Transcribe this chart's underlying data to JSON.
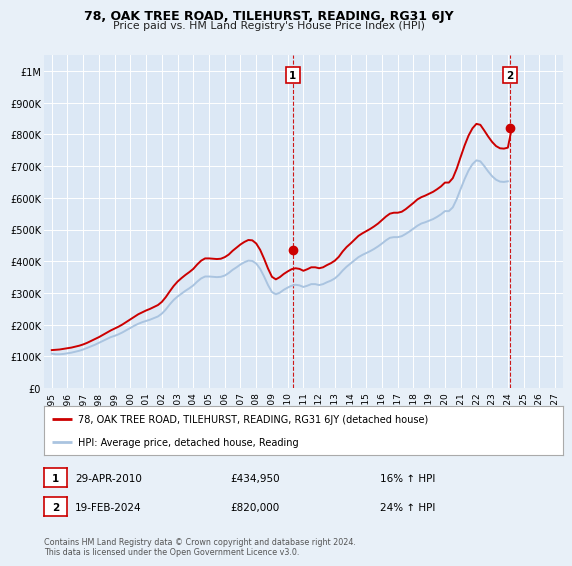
{
  "title": "78, OAK TREE ROAD, TILEHURST, READING, RG31 6JY",
  "subtitle": "Price paid vs. HM Land Registry's House Price Index (HPI)",
  "background_color": "#e8f0f8",
  "plot_bg_color": "#dce8f5",
  "grid_color": "#ffffff",
  "ylim": [
    0,
    1050000
  ],
  "yticks": [
    0,
    100000,
    200000,
    300000,
    400000,
    500000,
    600000,
    700000,
    800000,
    900000,
    1000000
  ],
  "ytick_labels": [
    "£0",
    "£100K",
    "£200K",
    "£300K",
    "£400K",
    "£500K",
    "£600K",
    "£700K",
    "£800K",
    "£900K",
    "£1M"
  ],
  "hpi_line_color": "#aac4e0",
  "price_line_color": "#cc0000",
  "sale1_x": 2010.33,
  "sale1_y": 434950,
  "sale1_label": "1",
  "sale1_date": "29-APR-2010",
  "sale1_price": "£434,950",
  "sale1_hpi": "16% ↑ HPI",
  "sale2_x": 2024.13,
  "sale2_y": 820000,
  "sale2_label": "2",
  "sale2_date": "19-FEB-2024",
  "sale2_price": "£820,000",
  "sale2_hpi": "24% ↑ HPI",
  "vline1_x": 2010.33,
  "vline2_x": 2024.13,
  "legend_label1": "78, OAK TREE ROAD, TILEHURST, READING, RG31 6JY (detached house)",
  "legend_label2": "HPI: Average price, detached house, Reading",
  "footer": "Contains HM Land Registry data © Crown copyright and database right 2024.\nThis data is licensed under the Open Government Licence v3.0.",
  "hpi_data_x": [
    1995.0,
    1995.25,
    1995.5,
    1995.75,
    1996.0,
    1996.25,
    1996.5,
    1996.75,
    1997.0,
    1997.25,
    1997.5,
    1997.75,
    1998.0,
    1998.25,
    1998.5,
    1998.75,
    1999.0,
    1999.25,
    1999.5,
    1999.75,
    2000.0,
    2000.25,
    2000.5,
    2000.75,
    2001.0,
    2001.25,
    2001.5,
    2001.75,
    2002.0,
    2002.25,
    2002.5,
    2002.75,
    2003.0,
    2003.25,
    2003.5,
    2003.75,
    2004.0,
    2004.25,
    2004.5,
    2004.75,
    2005.0,
    2005.25,
    2005.5,
    2005.75,
    2006.0,
    2006.25,
    2006.5,
    2006.75,
    2007.0,
    2007.25,
    2007.5,
    2007.75,
    2008.0,
    2008.25,
    2008.5,
    2008.75,
    2009.0,
    2009.25,
    2009.5,
    2009.75,
    2010.0,
    2010.25,
    2010.5,
    2010.75,
    2011.0,
    2011.25,
    2011.5,
    2011.75,
    2012.0,
    2012.25,
    2012.5,
    2012.75,
    2013.0,
    2013.25,
    2013.5,
    2013.75,
    2014.0,
    2014.25,
    2014.5,
    2014.75,
    2015.0,
    2015.25,
    2015.5,
    2015.75,
    2016.0,
    2016.25,
    2016.5,
    2016.75,
    2017.0,
    2017.25,
    2017.5,
    2017.75,
    2018.0,
    2018.25,
    2018.5,
    2018.75,
    2019.0,
    2019.25,
    2019.5,
    2019.75,
    2020.0,
    2020.25,
    2020.5,
    2020.75,
    2021.0,
    2021.25,
    2021.5,
    2021.75,
    2022.0,
    2022.25,
    2022.5,
    2022.75,
    2023.0,
    2023.25,
    2023.5,
    2023.75,
    2024.0
  ],
  "hpi_data_y": [
    109000,
    107000,
    107000,
    108000,
    110000,
    112000,
    115000,
    118000,
    122000,
    127000,
    132000,
    137000,
    143000,
    149000,
    155000,
    161000,
    165000,
    170000,
    176000,
    183000,
    190000,
    197000,
    203000,
    208000,
    212000,
    216000,
    221000,
    226000,
    235000,
    248000,
    264000,
    278000,
    289000,
    298000,
    307000,
    315000,
    324000,
    336000,
    346000,
    352000,
    352000,
    351000,
    350000,
    351000,
    355000,
    363000,
    373000,
    381000,
    390000,
    397000,
    402000,
    401000,
    393000,
    376000,
    352000,
    325000,
    303000,
    296000,
    301000,
    310000,
    317000,
    323000,
    326000,
    324000,
    319000,
    323000,
    328000,
    328000,
    325000,
    328000,
    334000,
    339000,
    346000,
    357000,
    371000,
    383000,
    393000,
    403000,
    413000,
    420000,
    426000,
    432000,
    439000,
    447000,
    456000,
    466000,
    474000,
    476000,
    476000,
    479000,
    486000,
    494000,
    503000,
    512000,
    519000,
    523000,
    528000,
    533000,
    540000,
    548000,
    558000,
    558000,
    570000,
    596000,
    628000,
    659000,
    686000,
    706000,
    718000,
    715000,
    700000,
    683000,
    668000,
    657000,
    651000,
    650000,
    652000
  ],
  "price_data_x": [
    1995.0,
    1995.25,
    1995.5,
    1995.75,
    1996.0,
    1996.25,
    1996.5,
    1996.75,
    1997.0,
    1997.25,
    1997.5,
    1997.75,
    1998.0,
    1998.25,
    1998.5,
    1998.75,
    1999.0,
    1999.25,
    1999.5,
    1999.75,
    2000.0,
    2000.25,
    2000.5,
    2000.75,
    2001.0,
    2001.25,
    2001.5,
    2001.75,
    2002.0,
    2002.25,
    2002.5,
    2002.75,
    2003.0,
    2003.25,
    2003.5,
    2003.75,
    2004.0,
    2004.25,
    2004.5,
    2004.75,
    2005.0,
    2005.25,
    2005.5,
    2005.75,
    2006.0,
    2006.25,
    2006.5,
    2006.75,
    2007.0,
    2007.25,
    2007.5,
    2007.75,
    2008.0,
    2008.25,
    2008.5,
    2008.75,
    2009.0,
    2009.25,
    2009.5,
    2009.75,
    2010.0,
    2010.25,
    2010.5,
    2010.75,
    2011.0,
    2011.25,
    2011.5,
    2011.75,
    2012.0,
    2012.25,
    2012.5,
    2012.75,
    2013.0,
    2013.25,
    2013.5,
    2013.75,
    2014.0,
    2014.25,
    2014.5,
    2014.75,
    2015.0,
    2015.25,
    2015.5,
    2015.75,
    2016.0,
    2016.25,
    2016.5,
    2016.75,
    2017.0,
    2017.25,
    2017.5,
    2017.75,
    2018.0,
    2018.25,
    2018.5,
    2018.75,
    2019.0,
    2019.25,
    2019.5,
    2019.75,
    2020.0,
    2020.25,
    2020.5,
    2020.75,
    2021.0,
    2021.25,
    2021.5,
    2021.75,
    2022.0,
    2022.25,
    2022.5,
    2022.75,
    2023.0,
    2023.25,
    2023.5,
    2023.75,
    2024.0,
    2024.25
  ],
  "price_data_y": [
    120000,
    121000,
    122000,
    124000,
    126000,
    128000,
    131000,
    134000,
    138000,
    143000,
    149000,
    155000,
    161000,
    168000,
    175000,
    182000,
    188000,
    194000,
    201000,
    209000,
    217000,
    225000,
    233000,
    239000,
    245000,
    250000,
    256000,
    262000,
    272000,
    287000,
    305000,
    322000,
    336000,
    347000,
    357000,
    366000,
    376000,
    390000,
    402000,
    409000,
    409000,
    408000,
    407000,
    408000,
    413000,
    421000,
    433000,
    443000,
    453000,
    461000,
    467000,
    466000,
    456000,
    436000,
    408000,
    377000,
    351000,
    343000,
    350000,
    360000,
    368000,
    375000,
    378000,
    376000,
    370000,
    375000,
    381000,
    381000,
    378000,
    381000,
    388000,
    394000,
    402000,
    414000,
    431000,
    445000,
    456000,
    468000,
    480000,
    488000,
    495000,
    502000,
    510000,
    519000,
    530000,
    541000,
    550000,
    553000,
    553000,
    556000,
    564000,
    574000,
    584000,
    595000,
    602000,
    607000,
    613000,
    619000,
    627000,
    636000,
    648000,
    648000,
    662000,
    692000,
    729000,
    765000,
    796000,
    819000,
    833000,
    830000,
    812000,
    793000,
    776000,
    763000,
    756000,
    755000,
    758000,
    820000
  ],
  "xlim_left": 1994.5,
  "xlim_right": 2027.5
}
